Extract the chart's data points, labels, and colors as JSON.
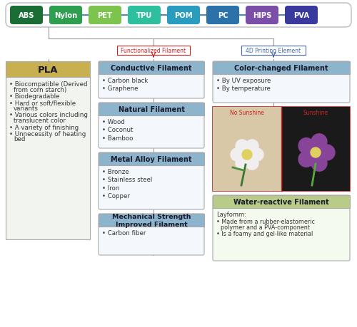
{
  "top_labels": [
    "ABS",
    "Nylon",
    "PET",
    "TPU",
    "POM",
    "PC",
    "HIPS",
    "PVA"
  ],
  "top_colors": [
    "#1a6e35",
    "#2e9e4f",
    "#7dc44e",
    "#2dbf9e",
    "#2a9dbf",
    "#2a72a8",
    "#7b4fa8",
    "#3a3a9e"
  ],
  "pla_title": "PLA",
  "pla_bullets": [
    "Biocompatible (Derived\nfrom corn starch)",
    "Biodegradable",
    "Hard or soft/flexible\nvariants",
    "Various colors including\ntranslucent color",
    "A variety of finishing",
    "Unnecessity of heating\nbed"
  ],
  "func_label": "Functionalized Filament",
  "printing_label": "4D Printing Element",
  "conductive_title": "Conductive Filament",
  "conductive_bullets": [
    "Carbon black",
    "Graphene"
  ],
  "natural_title": "Natural Filament",
  "natural_bullets": [
    "Wood",
    "Coconut",
    "Bamboo"
  ],
  "metal_title": "Metal Alloy Filament",
  "metal_bullets": [
    "Bronze",
    "Stainless steel",
    "Iron",
    "Copper"
  ],
  "mechanical_title": "Mechanical Strength\nImproved Filament",
  "mechanical_bullets": [
    "Carbon fiber"
  ],
  "color_changed_title": "Color-changed Filament",
  "color_changed_bullets": [
    "By UV exposure",
    "By temperature"
  ],
  "water_title": "Water-reactive Filament",
  "water_subtitle": "Layfomm:",
  "water_bullets": [
    "Made from a rubber-elastomeric\npolymer and a PVA-component",
    "Is a foamy and gel-like material"
  ],
  "sunshine_label_left": "No Sunshine",
  "sunshine_label_right": "Sunshine",
  "bg_color": "#ffffff",
  "box_header_color": "#8cb4cc",
  "pla_header_color": "#c8b45a",
  "water_header_color": "#b8cc88",
  "func_arrow_color": "#cc2222",
  "print_arrow_color": "#4466aa",
  "line_color": "#999999",
  "text_color": "#222222"
}
